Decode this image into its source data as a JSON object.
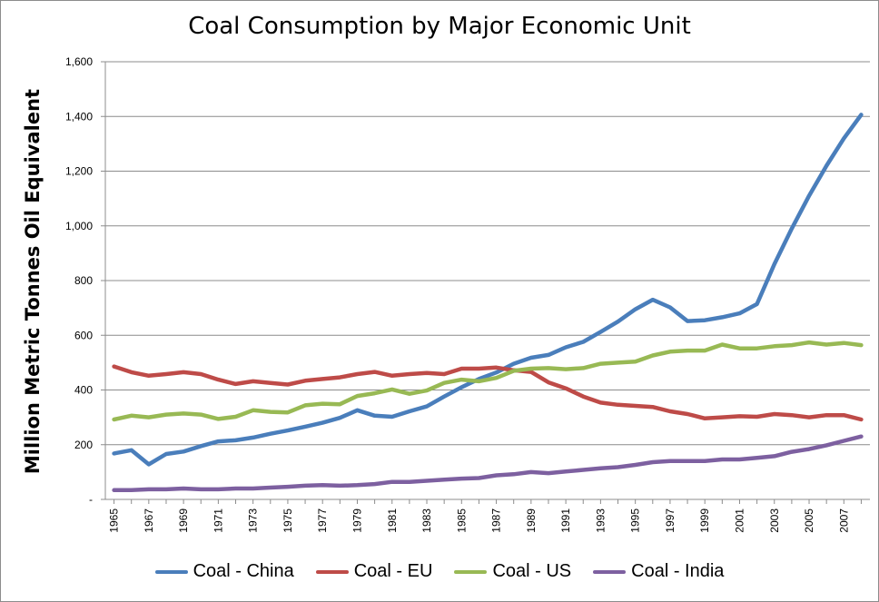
{
  "chart_data": {
    "type": "line",
    "title": "Coal Consumption by Major Economic Unit",
    "xlabel": "",
    "ylabel": "Million Metric Tonnes Oil Equivalent",
    "ylim": [
      0,
      1600
    ],
    "yticks": [
      0,
      200,
      400,
      600,
      800,
      1000,
      1200,
      1400,
      1600
    ],
    "ytick_labels": [
      "-",
      "200",
      "400",
      "600",
      "800",
      "1,000",
      "1,200",
      "1,400",
      "1,600"
    ],
    "x": [
      1965,
      1966,
      1967,
      1968,
      1969,
      1970,
      1971,
      1972,
      1973,
      1974,
      1975,
      1976,
      1977,
      1978,
      1979,
      1980,
      1981,
      1982,
      1983,
      1984,
      1985,
      1986,
      1987,
      1988,
      1989,
      1990,
      1991,
      1992,
      1993,
      1994,
      1995,
      1996,
      1997,
      1998,
      1999,
      2000,
      2001,
      2002,
      2003,
      2004,
      2005,
      2006,
      2007,
      2008
    ],
    "xtick_labels": [
      "1965",
      "1967",
      "1969",
      "1971",
      "1973",
      "1975",
      "1977",
      "1979",
      "1981",
      "1983",
      "1985",
      "1987",
      "1989",
      "1991",
      "1993",
      "1995",
      "1997",
      "1999",
      "2001",
      "2003",
      "2005",
      "2007"
    ],
    "grid": "horizontal",
    "legend_position": "bottom",
    "series": [
      {
        "name": "Coal - China",
        "color": "#4a7ebb",
        "values": [
          168,
          180,
          128,
          166,
          175,
          195,
          212,
          216,
          226,
          240,
          252,
          266,
          280,
          298,
          326,
          306,
          302,
          322,
          340,
          376,
          410,
          440,
          464,
          496,
          518,
          528,
          556,
          576,
          612,
          650,
          695,
          730,
          702,
          652,
          655,
          666,
          680,
          714,
          860,
          990,
          1110,
          1220,
          1320,
          1406
        ]
      },
      {
        "name": "Coal - EU",
        "color": "#be4b48",
        "values": [
          486,
          465,
          452,
          458,
          465,
          458,
          438,
          422,
          432,
          426,
          420,
          434,
          440,
          446,
          458,
          466,
          452,
          458,
          462,
          458,
          478,
          478,
          482,
          472,
          466,
          428,
          406,
          376,
          354,
          346,
          342,
          338,
          322,
          312,
          296,
          300,
          304,
          302,
          312,
          308,
          300,
          308,
          308,
          292
        ]
      },
      {
        "name": "Coal - US",
        "color": "#98b954",
        "values": [
          292,
          306,
          300,
          310,
          314,
          310,
          294,
          302,
          326,
          320,
          318,
          344,
          350,
          348,
          378,
          388,
          402,
          386,
          398,
          426,
          438,
          432,
          444,
          470,
          478,
          480,
          476,
          480,
          496,
          500,
          504,
          526,
          540,
          544,
          544,
          566,
          552,
          552,
          560,
          564,
          574,
          566,
          572,
          564
        ]
      },
      {
        "name": "Coal - India",
        "color": "#7d60a0",
        "values": [
          34,
          34,
          37,
          37,
          40,
          37,
          37,
          40,
          40,
          43,
          46,
          50,
          52,
          50,
          52,
          56,
          64,
          64,
          68,
          72,
          76,
          78,
          88,
          92,
          100,
          96,
          102,
          108,
          114,
          118,
          126,
          136,
          140,
          140,
          140,
          146,
          146,
          152,
          158,
          174,
          184,
          198,
          214,
          230
        ]
      }
    ]
  }
}
